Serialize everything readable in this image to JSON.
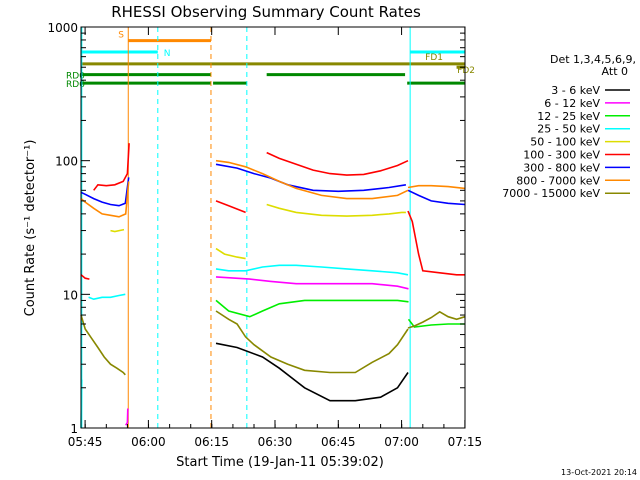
{
  "chart_data": {
    "type": "line",
    "title": "RHESSI Observing Summary Count Rates",
    "xlabel": "Start Time (19-Jan-11 05:39:02)",
    "ylabel": "Count Rate (s⁻¹ detector⁻¹)",
    "y_scale": "log",
    "ylim": [
      1,
      1000
    ],
    "xlim_minutes": [
      5.0,
      96.0
    ],
    "x_tick_labels": [
      "05:45",
      "06:00",
      "06:15",
      "06:30",
      "06:45",
      "07:00",
      "07:15"
    ],
    "x_ticks_minutes": [
      5.97,
      20.97,
      35.97,
      50.97,
      65.97,
      80.97,
      95.97
    ],
    "y_tick_labels": [
      "1",
      "10",
      "100",
      "1000"
    ],
    "y_ticks": [
      1,
      10,
      100,
      1000
    ],
    "timestamp": "13-Oct-2021 20:14",
    "legend": {
      "header": [
        "Det 1,3,4,5,6,9,",
        "Att 0"
      ],
      "entries": [
        {
          "label": "3 - 6 keV",
          "color": "#000000"
        },
        {
          "label": "6 - 12 keV",
          "color": "#ff00ff"
        },
        {
          "label": "12 - 25 keV",
          "color": "#00ee00"
        },
        {
          "label": "25 - 50 keV",
          "color": "#00ffff"
        },
        {
          "label": "50 - 100 keV",
          "color": "#dddd00"
        },
        {
          "label": "100 - 300 keV",
          "color": "#ff0000"
        },
        {
          "label": "300 - 800 keV",
          "color": "#0000ff"
        },
        {
          "label": "800 - 7000 keV",
          "color": "#ff8800"
        },
        {
          "label": "7000 - 15000 keV",
          "color": "#888800"
        }
      ]
    },
    "flag_bars": [
      {
        "label": "S",
        "color": "#ff8800",
        "y": 790,
        "segments": [
          [
            16.2,
            35.8
          ]
        ]
      },
      {
        "label": "N",
        "color": "#00ffff",
        "y": 650,
        "segments": [
          [
            5.0,
            23.2
          ],
          [
            83.0,
            96.0
          ]
        ]
      },
      {
        "label": "FD1",
        "color": "#888800",
        "y": 530,
        "segments": [
          [
            5.0,
            96.0
          ]
        ]
      },
      {
        "label": "FD2",
        "color": "#888800",
        "y": 500,
        "segments": [
          [
            94.0,
            96.0
          ]
        ]
      },
      {
        "label": "RD0",
        "color": "#008800",
        "y": 440,
        "segments": [
          [
            5.0,
            35.7
          ],
          [
            49.0,
            81.8
          ]
        ]
      },
      {
        "label": "RD6",
        "color": "#008800",
        "y": 380,
        "segments": [
          [
            5.0,
            35.7
          ],
          [
            36.3,
            44.3
          ],
          [
            82.3,
            96.0
          ]
        ]
      }
    ],
    "vertical_markers": [
      {
        "x": 5.2,
        "color": "#00ffff",
        "style": "solid"
      },
      {
        "x": 16.2,
        "color": "#ff8800",
        "style": "solid"
      },
      {
        "x": 23.2,
        "color": "#00ffff",
        "style": "dashed"
      },
      {
        "x": 35.8,
        "color": "#ff8800",
        "style": "dashed"
      },
      {
        "x": 44.3,
        "color": "#00ffff",
        "style": "dashed"
      },
      {
        "x": 83.0,
        "color": "#00ffff",
        "style": "solid"
      },
      {
        "x": 96.0,
        "color": "#00ffff",
        "style": "dashed"
      }
    ],
    "series": [
      {
        "name": "3 - 6 keV",
        "color": "#000000",
        "segments": [
          {
            "x": [
              37.0,
              42.0,
              48.0,
              52.0,
              58.0,
              64.0,
              70.0,
              76.0,
              80.0,
              82.5
            ],
            "y": [
              4.3,
              4.0,
              3.4,
              2.8,
              2.0,
              1.6,
              1.6,
              1.7,
              2.0,
              2.6
            ]
          }
        ]
      },
      {
        "name": "6 - 12 keV",
        "color": "#ff00ff",
        "segments": [
          {
            "x": [
              15.6,
              16.0,
              16.1
            ],
            "y": [
              1.05,
              1.1,
              1.4
            ]
          },
          {
            "x": [
              37.0,
              45.0,
              50.0,
              56.0,
              62.0,
              68.0,
              74.0,
              80.0,
              82.6
            ],
            "y": [
              13.5,
              13.0,
              12.5,
              12.0,
              12.0,
              12.0,
              12.0,
              11.5,
              11.0
            ]
          }
        ]
      },
      {
        "name": "12 - 25 keV",
        "color": "#00ee00",
        "segments": [
          {
            "x": [
              37.0,
              40.0,
              45.0,
              48.0,
              52.0,
              58.0,
              64.0,
              70.0,
              76.0,
              80.0,
              82.6
            ],
            "y": [
              9.0,
              7.5,
              6.8,
              7.5,
              8.5,
              9.0,
              9.0,
              9.0,
              9.0,
              9.0,
              8.8
            ]
          },
          {
            "x": [
              82.6,
              84.0,
              88.0,
              92.0,
              96.0
            ],
            "y": [
              6.5,
              5.7,
              5.9,
              6.0,
              6.0
            ]
          }
        ]
      },
      {
        "name": "25 - 50 keV",
        "color": "#00ffff",
        "segments": [
          {
            "x": [
              5.0,
              5.2
            ],
            "y": [
              1.0,
              2.3
            ]
          },
          {
            "x": [
              6.8,
              8.0,
              10.0,
              12.0,
              14.0,
              15.5
            ],
            "y": [
              9.5,
              9.2,
              9.5,
              9.5,
              9.8,
              10.0
            ]
          },
          {
            "x": [
              37.0,
              40.0,
              44.0,
              48.0,
              52.0,
              56.0,
              62.0,
              68.0,
              74.0,
              80.0,
              82.5
            ],
            "y": [
              15.5,
              15.0,
              15.0,
              16.0,
              16.5,
              16.5,
              16.0,
              15.5,
              15.0,
              14.5,
              14.0
            ]
          }
        ]
      },
      {
        "name": "50 - 100 keV",
        "color": "#dddd00",
        "segments": [
          {
            "x": [
              12.0,
              13.0,
              15.2
            ],
            "y": [
              30.0,
              29.5,
              30.5
            ]
          },
          {
            "x": [
              37.0,
              39.0,
              42.0,
              44.0
            ],
            "y": [
              22.0,
              20.0,
              19.0,
              18.5
            ]
          },
          {
            "x": [
              49.0,
              52.0,
              56.0,
              62.0,
              68.0,
              74.0,
              78.0,
              81.0,
              82.0
            ],
            "y": [
              47.0,
              44.0,
              41.0,
              39.0,
              38.5,
              39.0,
              40.0,
              41.0,
              41.0
            ]
          }
        ]
      },
      {
        "name": "100 - 300 keV",
        "color": "#ff0000",
        "segments": [
          {
            "x": [
              5.0,
              6.0,
              7.0
            ],
            "y": [
              14.0,
              13.2,
              13.0
            ]
          },
          {
            "x": [
              8.0,
              9.0,
              11.0,
              13.0,
              15.0,
              16.0,
              16.4
            ],
            "y": [
              60.0,
              66.0,
              65.0,
              66.0,
              70.0,
              80.0,
              135.0
            ]
          },
          {
            "x": [
              37.0,
              40.0,
              44.0
            ],
            "y": [
              50.0,
              46.0,
              41.0
            ]
          },
          {
            "x": [
              49.0,
              52.0,
              56.0,
              60.0,
              64.0,
              68.0,
              72.0,
              76.0,
              80.0,
              82.5
            ],
            "y": [
              115.0,
              104.0,
              94.0,
              85.0,
              80.0,
              78.0,
              79.0,
              84.0,
              92.0,
              100.0
            ]
          },
          {
            "x": [
              82.5,
              83.5,
              85.0,
              86.0,
              90.0,
              94.0,
              96.0
            ],
            "y": [
              42.0,
              35.0,
              20.0,
              15.0,
              14.5,
              14.0,
              14.0
            ]
          }
        ]
      },
      {
        "name": "300 - 800 keV",
        "color": "#0000ff",
        "segments": [
          {
            "x": [
              5.0,
              6.0,
              8.0,
              10.0,
              12.0,
              14.0,
              15.5,
              16.3
            ],
            "y": [
              58.0,
              56.0,
              52.0,
              49.0,
              47.0,
              46.0,
              48.0,
              75.0
            ]
          },
          {
            "x": [
              37.0,
              42.0,
              46.0,
              50.0,
              54.0,
              60.0,
              66.0,
              72.0,
              78.0,
              82.0
            ],
            "y": [
              94.0,
              88.0,
              80.0,
              74.0,
              66.0,
              60.0,
              59.0,
              60.0,
              63.0,
              66.0
            ]
          },
          {
            "x": [
              82.5,
              85.0,
              88.0,
              92.0,
              96.0
            ],
            "y": [
              60.0,
              55.0,
              50.0,
              48.0,
              47.0
            ]
          }
        ]
      },
      {
        "name": "800 - 7000 keV",
        "color": "#ff8800",
        "segments": [
          {
            "x": [
              5.0,
              6.0,
              8.0,
              10.0,
              12.0,
              14.0,
              15.6,
              16.3
            ],
            "y": [
              52.0,
              49.0,
              44.0,
              40.0,
              39.0,
              38.0,
              40.0,
              70.0
            ]
          },
          {
            "x": [
              37.0,
              40.0,
              44.0,
              48.0,
              52.0,
              56.0,
              62.0,
              68.0,
              74.0,
              80.0,
              82.5
            ],
            "y": [
              100.0,
              97.0,
              90.0,
              80.0,
              70.0,
              62.0,
              55.0,
              52.0,
              52.0,
              55.0,
              60.0
            ]
          },
          {
            "x": [
              82.5,
              85.0,
              88.0,
              92.0,
              96.0
            ],
            "y": [
              63.0,
              65.0,
              65.0,
              64.0,
              62.0
            ]
          }
        ]
      },
      {
        "name": "7000 - 15000 keV",
        "color": "#888800",
        "segments": [
          {
            "x": [
              5.0,
              6.0,
              7.5,
              9.0,
              10.5,
              12.0,
              13.5,
              15.0,
              15.5
            ],
            "y": [
              7.0,
              5.5,
              4.7,
              4.0,
              3.4,
              3.0,
              2.8,
              2.6,
              2.5
            ]
          },
          {
            "x": [
              37.0,
              40.0,
              42.0,
              44.0,
              46.0,
              50.0,
              54.0,
              58.0,
              64.0,
              70.0,
              74.0,
              78.0,
              80.0,
              82.5
            ],
            "y": [
              7.5,
              6.5,
              6.0,
              4.8,
              4.2,
              3.4,
              3.0,
              2.7,
              2.6,
              2.6,
              3.1,
              3.6,
              4.2,
              5.5
            ]
          },
          {
            "x": [
              82.5,
              84.0,
              86.0,
              88.0,
              90.0,
              92.0,
              94.0,
              96.0
            ],
            "y": [
              5.6,
              5.8,
              6.2,
              6.7,
              7.4,
              6.8,
              6.5,
              6.8
            ]
          }
        ]
      }
    ]
  }
}
